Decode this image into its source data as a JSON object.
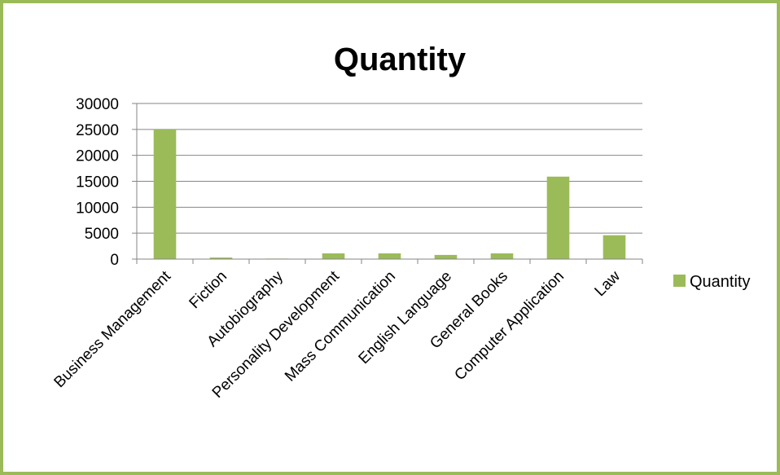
{
  "chart_data": {
    "type": "bar",
    "title": "Quantity",
    "xlabel": "",
    "ylabel": "",
    "categories": [
      "Business Management",
      "Fiction",
      "Autobiography",
      "Personality Development",
      "Mass Communication",
      "English Language",
      "General Books",
      "Computer Application",
      "Law"
    ],
    "series": [
      {
        "name": "Quantity",
        "values": [
          25000,
          300,
          100,
          1100,
          1100,
          800,
          1100,
          15900,
          4600
        ]
      }
    ],
    "ylim": [
      0,
      30000
    ],
    "yticks": [
      "0",
      "5000",
      "10000",
      "15000",
      "20000",
      "25000",
      "30000"
    ],
    "grid": true,
    "legend_position": "right",
    "colors": {
      "bar": "#9BBB59",
      "frame": "#9BBB59",
      "axis": "#868686"
    }
  }
}
